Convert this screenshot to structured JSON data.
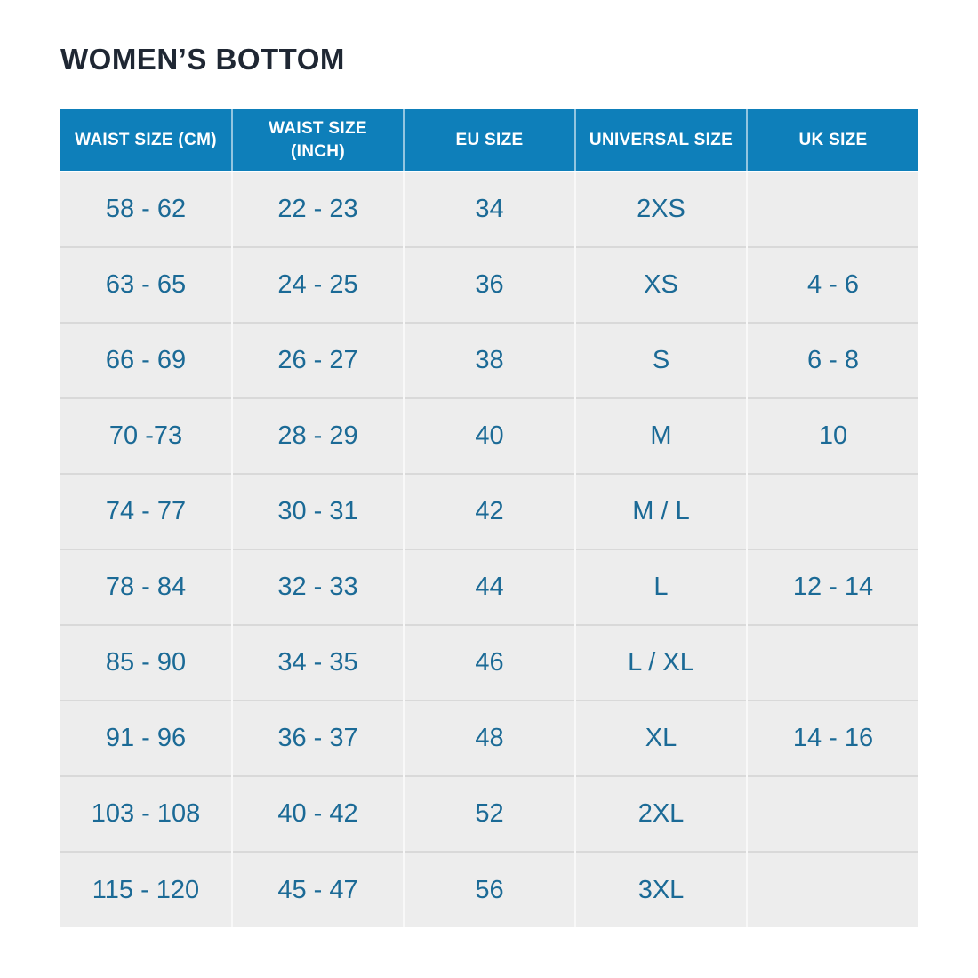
{
  "page": {
    "background_color": "#ffffff"
  },
  "title": "WOMEN’S BOTTOM",
  "colors": {
    "title_text": "#1f2733",
    "header_background": "#0e7fba",
    "header_text": "#ffffff",
    "cell_background": "#ededed",
    "cell_text": "#1b6a96",
    "row_divider": "#d9d9d9"
  },
  "chart_data": {
    "type": "table",
    "title": "WOMEN’S BOTTOM",
    "columns": [
      "WAIST SIZE (CM)",
      "WAIST SIZE (INCH)",
      "EU SIZE",
      "UNIVERSAL SIZE",
      "UK SIZE"
    ],
    "rows": [
      [
        "58 - 62",
        "22 - 23",
        "34",
        "2XS",
        ""
      ],
      [
        "63 - 65",
        "24 - 25",
        "36",
        "XS",
        "4 - 6"
      ],
      [
        "66 - 69",
        "26 - 27",
        "38",
        "S",
        "6 - 8"
      ],
      [
        "70 -73",
        "28 - 29",
        "40",
        "M",
        "10"
      ],
      [
        "74 - 77",
        "30 - 31",
        "42",
        "M / L",
        ""
      ],
      [
        "78 - 84",
        "32 - 33",
        "44",
        "L",
        "12 - 14"
      ],
      [
        "85 - 90",
        "34 - 35",
        "46",
        "L / XL",
        ""
      ],
      [
        "91 - 96",
        "36 - 37",
        "48",
        "XL",
        "14 - 16"
      ],
      [
        "103 - 108",
        "40 - 42",
        "52",
        "2XL",
        ""
      ],
      [
        "115 - 120",
        "45 - 47",
        "56",
        "3XL",
        ""
      ]
    ]
  }
}
